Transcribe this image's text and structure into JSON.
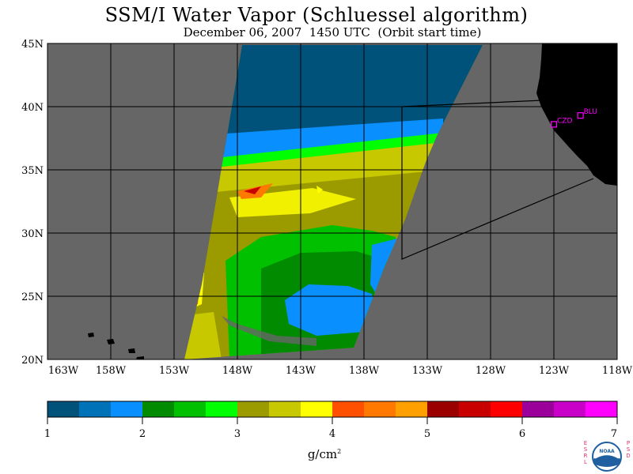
{
  "title": "SSM/I Water Vapor (Schluessel algorithm)",
  "subtitle": "December 06, 2007  1450 UTC  (Orbit start time)",
  "map": {
    "lon_range": [
      -163,
      -118
    ],
    "lat_range": [
      20,
      45
    ],
    "x_ticks": [
      "163W",
      "158W",
      "153W",
      "148W",
      "143W",
      "138W",
      "133W",
      "128W",
      "123W",
      "118W"
    ],
    "y_ticks": [
      "20N",
      "25N",
      "30N",
      "35N",
      "40N",
      "45N"
    ],
    "stations": [
      {
        "name": "CZD",
        "lon": -123.0,
        "lat": 38.6
      },
      {
        "name": "BLU",
        "lon": -120.9,
        "lat": 39.3
      }
    ],
    "colors": {
      "background": "#666666",
      "land": "#000000",
      "grid": "#000000",
      "station": "#ff00ff"
    }
  },
  "colorbar": {
    "min": 1,
    "max": 7,
    "tick_labels": [
      "1",
      "2",
      "3",
      "4",
      "5",
      "6",
      "7"
    ],
    "units": "g/cm",
    "units_sup": "2",
    "colors": [
      "#00527a",
      "#0073b8",
      "#0a8fff",
      "#008b00",
      "#00c000",
      "#00ff00",
      "#9b9b00",
      "#c8c800",
      "#ffff00",
      "#ff5000",
      "#ff7800",
      "#ffa000",
      "#9b0000",
      "#c80000",
      "#ff0000",
      "#9b009b",
      "#c800c8",
      "#ff00ff"
    ]
  },
  "logo": {
    "left_text": "ESRL",
    "right_text": "PSD",
    "center_text": "NOAA"
  }
}
